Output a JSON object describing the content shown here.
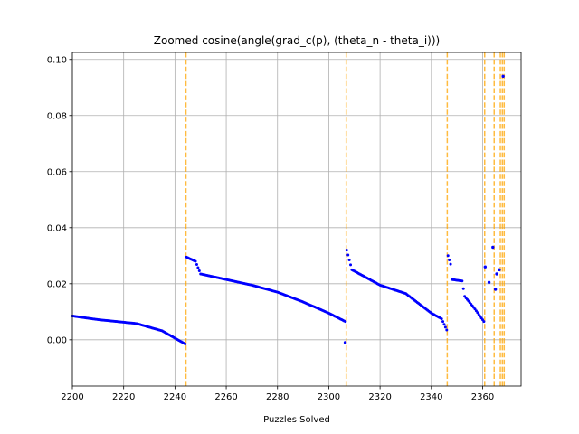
{
  "chart_data": {
    "type": "scatter",
    "title": "Zoomed cosine(angle(grad_c(p), (theta_n - theta_i)))",
    "xlabel": "Puzzles Solved",
    "ylabel": "",
    "xlim": [
      2200,
      2375
    ],
    "ylim": [
      -0.0165,
      0.1025
    ],
    "xticks": [
      2200,
      2220,
      2240,
      2260,
      2280,
      2300,
      2320,
      2340,
      2360
    ],
    "yticks": [
      0.0,
      0.02,
      0.04,
      0.06,
      0.08,
      0.1
    ],
    "xtick_labels": [
      "2200",
      "2220",
      "2240",
      "2260",
      "2280",
      "2300",
      "2320",
      "2340",
      "2360"
    ],
    "ytick_labels": [
      "0.00",
      "0.02",
      "0.04",
      "0.06",
      "0.08",
      "0.10"
    ],
    "grid": true,
    "marker_color": "#0000ff",
    "vline_color": "#ffa500",
    "vlines": [
      2244.3,
      2306.8,
      2346.2,
      2360.8,
      2364.5,
      2366.9,
      2367.7,
      2368.4
    ],
    "segments": [
      {
        "x_start": 2200,
        "x_end": 2244,
        "y_start": 0.0085,
        "y_end": -0.0015,
        "knots": [
          [
            2200,
            0.0085
          ],
          [
            2210,
            0.0072
          ],
          [
            2225,
            0.0058
          ],
          [
            2235,
            0.0032
          ],
          [
            2244,
            -0.0015
          ]
        ]
      },
      {
        "x_start": 2244.5,
        "x_end": 2306.5,
        "y_start": 0.0295,
        "y_end": 0.0065,
        "knots": [
          [
            2244.5,
            0.0295
          ],
          [
            2248,
            0.028
          ],
          [
            2250,
            0.0235
          ],
          [
            2260,
            0.0215
          ],
          [
            2270,
            0.0195
          ],
          [
            2280,
            0.017
          ],
          [
            2290,
            0.0135
          ],
          [
            2300,
            0.0095
          ],
          [
            2306.5,
            0.0065
          ]
        ]
      },
      {
        "x_start": 2307,
        "x_end": 2346,
        "y_start": 0.032,
        "y_end": 0.0035,
        "knots": [
          [
            2307,
            0.032
          ],
          [
            2309,
            0.025
          ],
          [
            2315,
            0.022
          ],
          [
            2320,
            0.0195
          ],
          [
            2330,
            0.0165
          ],
          [
            2340,
            0.0095
          ],
          [
            2344,
            0.0075
          ],
          [
            2346,
            0.0035
          ]
        ]
      },
      {
        "x_start": 2346.5,
        "x_end": 2360.5,
        "y_start": 0.03,
        "y_end": 0.0065,
        "knots": [
          [
            2346.5,
            0.03
          ],
          [
            2347.5,
            0.027
          ],
          [
            2348,
            0.0215
          ],
          [
            2352,
            0.021
          ],
          [
            2353,
            0.0155
          ],
          [
            2357,
            0.011
          ],
          [
            2360.5,
            0.0065
          ]
        ]
      }
    ],
    "extra_points": [
      {
        "x": 2306.4,
        "y": -0.001
      },
      {
        "x": 2361,
        "y": 0.026
      },
      {
        "x": 2362.5,
        "y": 0.0205
      },
      {
        "x": 2364,
        "y": 0.033
      },
      {
        "x": 2365,
        "y": 0.018
      },
      {
        "x": 2365.5,
        "y": 0.0235
      },
      {
        "x": 2366.5,
        "y": 0.025
      },
      {
        "x": 2368,
        "y": 0.094
      }
    ]
  }
}
